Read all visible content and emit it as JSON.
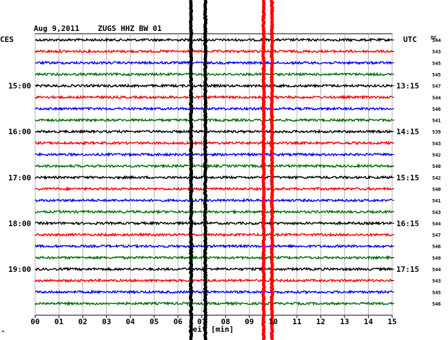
{
  "chart_data": {
    "type": "line",
    "title_date": "Aug 9,2011",
    "title_station": "ZUGS HHZ BW 01",
    "left_label": "CES",
    "right_label": "UTC",
    "dc_label": "DC",
    "xlabel": "Zeit [min]",
    "x_ticks": [
      "00",
      "01",
      "02",
      "03",
      "04",
      "05",
      "06",
      "07",
      "08",
      "09",
      "10",
      "11",
      "12",
      "13",
      "14",
      "15"
    ],
    "xlim": [
      0,
      15
    ],
    "left_hour_labels": [
      {
        "row": 4,
        "text": "15:00"
      },
      {
        "row": 8,
        "text": "16:00"
      },
      {
        "row": 12,
        "text": "17:00"
      },
      {
        "row": 16,
        "text": "18:00"
      },
      {
        "row": 20,
        "text": "19:00"
      }
    ],
    "right_hour_labels": [
      {
        "row": 4,
        "text": "13:15"
      },
      {
        "row": 8,
        "text": "14:15"
      },
      {
        "row": 12,
        "text": "15:15"
      },
      {
        "row": 16,
        "text": "16:15"
      },
      {
        "row": 20,
        "text": "17:15"
      }
    ],
    "dc_values": [
      "544",
      "543",
      "545",
      "545",
      "547",
      "544",
      "546",
      "541",
      "539",
      "543",
      "542",
      "540",
      "542",
      "540",
      "541",
      "543",
      "544",
      "547",
      "546",
      "549",
      "544",
      "543",
      "545",
      "546"
    ],
    "trace_colors": [
      "#000000",
      "#ff0000",
      "#0000ff",
      "#007000"
    ],
    "grid": true,
    "events": [
      {
        "color": "#000000",
        "minutes": [
          6.55,
          7.15
        ]
      },
      {
        "color": "#ff0000",
        "minutes": [
          9.6,
          9.95
        ]
      }
    ],
    "footer_mark": "^"
  }
}
